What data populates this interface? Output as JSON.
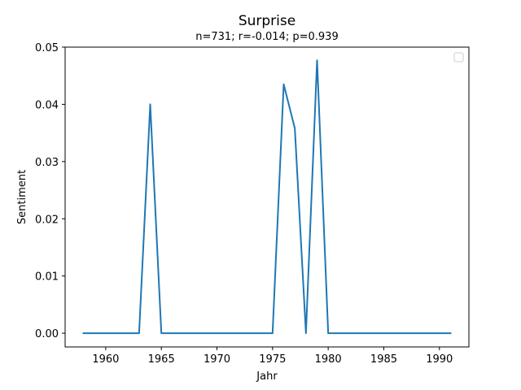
{
  "chart_data": {
    "type": "line",
    "title": "Surprise",
    "subtitle": "n=731; r=-0.014; p=0.939",
    "xlabel": "Jahr",
    "ylabel": "Sentiment",
    "xlim": [
      1956.35,
      1992.65
    ],
    "ylim": [
      -0.0024,
      0.05
    ],
    "x_ticks": [
      1960,
      1965,
      1970,
      1975,
      1980,
      1985,
      1990
    ],
    "y_ticks": [
      0.0,
      0.01,
      0.02,
      0.03,
      0.04,
      0.05
    ],
    "y_tick_labels": [
      "0.00",
      "0.01",
      "0.02",
      "0.03",
      "0.04",
      "0.05"
    ],
    "legend": {
      "placement": "top-right",
      "entries": []
    },
    "series": [
      {
        "color": "#1f77b4",
        "x": [
          1958,
          1959,
          1960,
          1961,
          1962,
          1963,
          1964,
          1965,
          1966,
          1967,
          1968,
          1969,
          1970,
          1971,
          1972,
          1973,
          1974,
          1975,
          1976,
          1977,
          1978,
          1979,
          1980,
          1981,
          1982,
          1983,
          1984,
          1985,
          1986,
          1987,
          1988,
          1989,
          1990,
          1991
        ],
        "y": [
          0,
          0,
          0,
          0,
          0,
          0,
          0.04,
          0,
          0,
          0,
          0,
          0,
          0,
          0,
          0,
          0,
          0,
          0,
          0.0435,
          0.0358,
          0,
          0.0477,
          0,
          0,
          0,
          0,
          0,
          0,
          0,
          0,
          0,
          0,
          0,
          0
        ]
      }
    ]
  }
}
